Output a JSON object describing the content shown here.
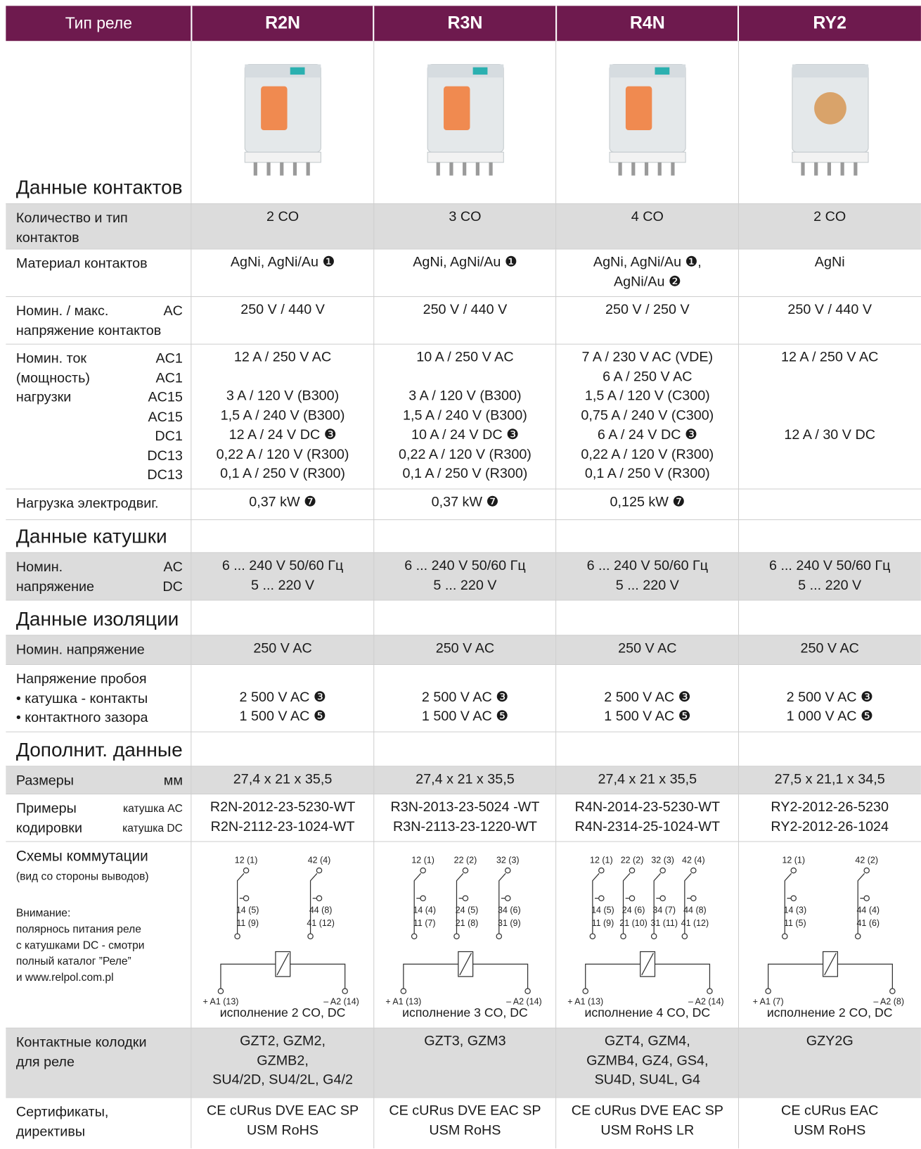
{
  "table": {
    "header": [
      "Тип реле",
      "R2N",
      "R3N",
      "R4N",
      "RY2"
    ],
    "rows": [
      {
        "section": "Данные контактов"
      },
      {
        "shaded": true,
        "left": [
          "Количество и тип",
          "контактов"
        ],
        "cells": [
          [
            "2 CO"
          ],
          [
            "3 CO"
          ],
          [
            "4 CO"
          ],
          [
            "2 CO"
          ]
        ]
      },
      {
        "left": [
          "Материал контактов"
        ],
        "cells": [
          [
            "AgNi, AgNi/Au ❶"
          ],
          [
            "AgNi, AgNi/Au ❶"
          ],
          [
            "AgNi, AgNi/Au ❶,",
            "AgNi/Au ❷"
          ],
          [
            "AgNi"
          ]
        ]
      },
      {
        "left": [
          "Номин. / макс.",
          "напряжение контактов"
        ],
        "right": [
          "AC"
        ],
        "cells": [
          [
            "250 V / 440 V"
          ],
          [
            "250 V / 440 V"
          ],
          [
            "250 V / 250 V"
          ],
          [
            "250 V / 440 V"
          ]
        ]
      },
      {
        "left": [
          "Номин. ток",
          "(мощность)",
          "нагрузки"
        ],
        "right": [
          "AC1",
          "AC1",
          "AC15",
          "AC15",
          "DC1",
          "DC13",
          "DC13"
        ],
        "cells": [
          [
            "12 A / 250 V AC",
            null,
            "3 A / 120 V (B300)",
            "1,5 A / 240 V (B300)",
            "12 A / 24 V DC ❸",
            "0,22 A / 120 V (R300)",
            "0,1 A / 250 V (R300)"
          ],
          [
            "10 A / 250 V AC",
            null,
            "3 A / 120 V (B300)",
            "1,5 A / 240 V (B300)",
            "10 A / 24 V DC ❸",
            "0,22 A / 120 V (R300)",
            "0,1 A / 250 V (R300)"
          ],
          [
            "7 A / 230 V AC (VDE)",
            "6 A / 250 V AC",
            "1,5 A / 120 V (C300)",
            "0,75 A / 240 V (C300)",
            "6 A / 24 V DC ❸",
            "0,22 A / 120 V (R300)",
            "0,1 A / 250 V (R300)"
          ],
          [
            "12 A / 250 V AC",
            null,
            null,
            null,
            "12 A / 30 V DC"
          ]
        ]
      },
      {
        "left": [
          "Нагрузка электродвиг."
        ],
        "cells": [
          [
            "0,37 kW ❼"
          ],
          [
            "0,37 kW ❼"
          ],
          [
            "0,125 kW ❼"
          ],
          []
        ]
      },
      {
        "section": "Данные катушки"
      },
      {
        "shaded": true,
        "left": [
          "Номин.",
          "напряжение"
        ],
        "right": [
          "AC",
          "DC"
        ],
        "cells": [
          [
            "6 ... 240 V 50/60 Гц",
            "5 ... 220 V"
          ],
          [
            "6 ... 240 V 50/60 Гц",
            "5 ... 220 V"
          ],
          [
            "6 ... 240 V 50/60 Гц",
            "5 ... 220 V"
          ],
          [
            "6 ... 240 V 50/60 Гц",
            "5 ... 220 V"
          ]
        ]
      },
      {
        "section": "Данные изоляции"
      },
      {
        "shaded": true,
        "left": [
          "Номин. напряжение"
        ],
        "cells": [
          [
            "250 V AC"
          ],
          [
            "250 V AC"
          ],
          [
            "250 V AC"
          ],
          [
            "250 V AC"
          ]
        ]
      },
      {
        "left": [
          "Напряжение пробоя",
          "• катушка - контакты",
          "• контактного зазора"
        ],
        "cells": [
          [
            null,
            "2 500 V AC ❸",
            "1 500 V AC ❺"
          ],
          [
            null,
            "2 500 V AC ❸",
            "1 500 V AC ❺"
          ],
          [
            null,
            "2 500 V AC ❸",
            "1 500 V AC ❺"
          ],
          [
            null,
            "2 500 V AC ❸",
            "1 000 V AC ❺"
          ]
        ]
      },
      {
        "section": "Дополнит. данные"
      },
      {
        "shaded": true,
        "left": [
          "Размеры"
        ],
        "right": [
          "мм"
        ],
        "cells": [
          [
            "27,4 x 21 x 35,5"
          ],
          [
            "27,4 x 21 x 35,5"
          ],
          [
            "27,4 x 21 x 35,5"
          ],
          [
            "27,5 x 21,1 x 34,5"
          ]
        ]
      },
      {
        "left": [
          "Примеры",
          "кодировки"
        ],
        "right": [
          "катушка AC",
          "катушка DC"
        ],
        "cells": [
          [
            "R2N-2012-23-5230-WT",
            "R2N-2112-23-1024-WT"
          ],
          [
            "R3N-2013-23-5024 -WT",
            "R3N-2113-23-1220-WT"
          ],
          [
            "R4N-2014-23-5230-WT",
            "R4N-2314-25-1024-WT"
          ],
          [
            "RY2-2012-26-5230",
            "RY2-2012-26-1024"
          ]
        ]
      },
      {
        "left": [
          "Схемы коммутации"
        ],
        "sub": [
          "(вид со стороны выводов)"
        ],
        "note": [
          "Внимание:",
          "полярнось питания реле",
          "с катушками DC - смотри",
          "полный каталог ”Реле”",
          "и www.relpol.com.pl"
        ],
        "diagrams": [
          {
            "nc": [
              "12 (1)",
              "42 (4)"
            ],
            "no": [
              "14 (5)",
              "44 (8)"
            ],
            "com": [
              "11 (9)",
              "41 (12)"
            ],
            "coil": [
              "+ A1 (13)",
              "– A2 (14)"
            ],
            "caption": "исполнение 2 CO, DC"
          },
          {
            "nc": [
              "12 (1)",
              "22 (2)",
              "32 (3)"
            ],
            "no": [
              "14 (4)",
              "24 (5)",
              "34 (6)"
            ],
            "com": [
              "11 (7)",
              "21 (8)",
              "31 (9)"
            ],
            "coil": [
              "+ A1 (13)",
              "– A2 (14)"
            ],
            "caption": "исполнение 3 CO, DC"
          },
          {
            "nc": [
              "12 (1)",
              "22 (2)",
              "32 (3)",
              "42 (4)"
            ],
            "no": [
              "14 (5)",
              "24 (6)",
              "34 (7)",
              "44 (8)"
            ],
            "com": [
              "11 (9)",
              "21 (10)",
              "31 (11)",
              "41 (12)"
            ],
            "coil": [
              "+ A1 (13)",
              "– A2 (14)"
            ],
            "caption": "исполнение 4 CO, DC"
          },
          {
            "nc": [
              "12 (1)",
              "42 (2)"
            ],
            "no": [
              "14 (3)",
              "44 (4)"
            ],
            "com": [
              "11 (5)",
              "41 (6)"
            ],
            "coil": [
              "+ A1 (7)",
              "– A2 (8)"
            ],
            "caption": "исполнение 2 CO, DC"
          }
        ]
      },
      {
        "shaded": true,
        "left": [
          "Контактные колодки",
          "для реле"
        ],
        "cells": [
          [
            "GZT2, GZM2,",
            "GZMB2,",
            "SU4/2D, SU4/2L, G4/2"
          ],
          [
            "GZT3, GZM3"
          ],
          [
            "GZT4, GZM4,",
            "GZMB4, GZ4, GS4,",
            "SU4D, SU4L, G4"
          ],
          [
            "GZY2G"
          ]
        ]
      },
      {
        "left": [
          "Сертификаты,",
          "директивы"
        ],
        "cells": [
          [
            "CE cURus DVE EAC SP",
            "USM RoHS"
          ],
          [
            "CE cURus DVE EAC SP",
            "USM RoHS"
          ],
          [
            "CE cURus DVE EAC SP",
            "USM RoHS LR"
          ],
          [
            "CE cURus EAC",
            "USM RoHS"
          ]
        ]
      }
    ]
  }
}
